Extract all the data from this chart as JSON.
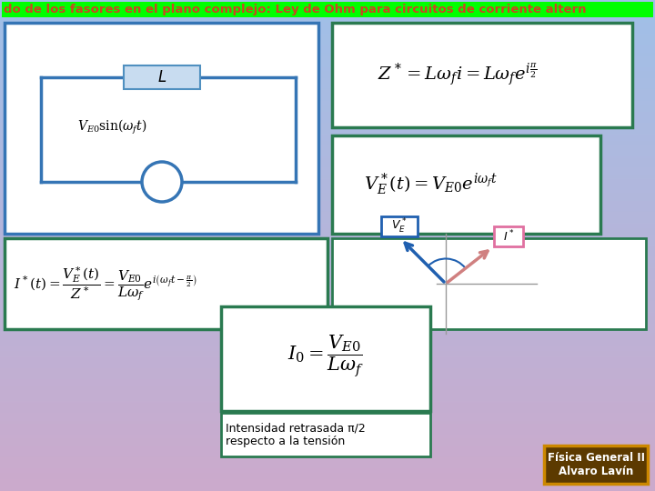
{
  "title": "do de los fasores en el plano complejo: Ley de Ohm para circuitos de corriente altern",
  "title_bg": "#00FF00",
  "title_color": "#CC4422",
  "main_bg_tl": "#88BBDD",
  "main_bg_br": "#DDBBCC",
  "box_blue": "#3575B5",
  "box_green": "#2A7A50",
  "brand_bg": "#5C3A00",
  "brand_border": "#CC8800",
  "brand_text": "Física General II\nAlvaro Lavín",
  "caption": "Intensidad retrasada π/2\nrespecto a la tensión"
}
